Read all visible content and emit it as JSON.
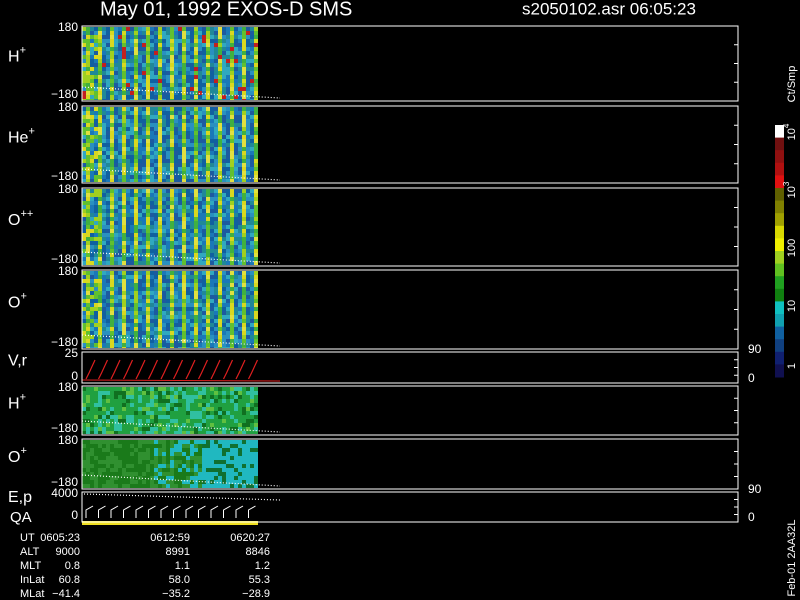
{
  "header": {
    "title": "May 01, 1992   EXOS-D SMS",
    "file": "s2050102.asr  06:05:23"
  },
  "panels": [
    {
      "label": "H",
      "sup": "+",
      "left_ticks": [
        "180",
        "−180"
      ]
    },
    {
      "label": "He",
      "sup": "+",
      "left_ticks": [
        "180",
        "−180"
      ]
    },
    {
      "label": "O",
      "sup": "++",
      "left_ticks": [
        "180",
        "−180"
      ]
    },
    {
      "label": "O",
      "sup": "+",
      "left_ticks": [
        "180",
        "−180"
      ]
    },
    {
      "label": "V,r",
      "left_ticks": [
        "25",
        "0"
      ],
      "right_ticks": [
        "90",
        "0"
      ]
    },
    {
      "label": "H",
      "sup": "+",
      "left_ticks": [
        "180",
        "−180"
      ]
    },
    {
      "label": "O",
      "sup": "+",
      "left_ticks": [
        "180",
        "−180"
      ]
    },
    {
      "label": "E,p",
      "label2": "QA",
      "left_ticks": [
        "4000",
        "0"
      ],
      "right_ticks": [
        "90",
        "0"
      ]
    }
  ],
  "colorbar": {
    "unit": "Ct/Smp",
    "ticks": [
      {
        "base": "10",
        "exp": "4"
      },
      {
        "base": "10",
        "exp": "3"
      },
      {
        "base": "100"
      },
      {
        "base": "10"
      },
      {
        "base": "1"
      }
    ]
  },
  "footer": {
    "rows": [
      [
        "UT",
        "0605:23",
        "0612:59",
        "0620:27"
      ],
      [
        "ALT",
        "9000",
        "8991",
        "8846"
      ],
      [
        "MLT",
        "0.8",
        "1.1",
        "1.2"
      ],
      [
        "InLat",
        "60.8",
        "58.0",
        "55.3"
      ],
      [
        "MLat",
        "−41.4",
        "−35.2",
        "−28.9"
      ]
    ]
  },
  "stamp": "Feb-01 2AA32L"
}
